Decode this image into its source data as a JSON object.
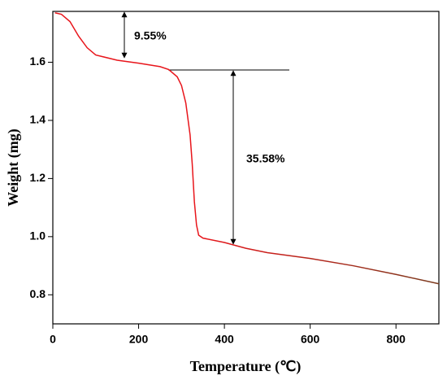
{
  "chart_data": {
    "type": "line",
    "xlabel": "Temperature (℃)",
    "ylabel": "Weight (mg)",
    "x": [
      5,
      20,
      40,
      60,
      80,
      100,
      150,
      200,
      250,
      270,
      290,
      300,
      310,
      320,
      325,
      330,
      335,
      340,
      350,
      400,
      450,
      500,
      600,
      700,
      800,
      900
    ],
    "series": [
      {
        "colors": [
          "#e8151b",
          "#7b3b1e"
        ],
        "values": [
          1.77,
          1.765,
          1.74,
          1.69,
          1.65,
          1.625,
          1.607,
          1.597,
          1.585,
          1.575,
          1.55,
          1.52,
          1.46,
          1.35,
          1.25,
          1.12,
          1.04,
          1.005,
          0.995,
          0.98,
          0.96,
          0.945,
          0.925,
          0.9,
          0.87,
          0.838
        ]
      }
    ],
    "xlim": [
      0,
      900
    ],
    "ylim": [
      0.7,
      1.775
    ],
    "xticks": [
      0,
      200,
      400,
      600,
      800
    ],
    "yticks": [
      0.8,
      {
        "value": 1,
        "label": "1.0"
      },
      1.2,
      1.4,
      1.6
    ],
    "annotations": [
      "9.55%",
      "35.58%"
    ]
  }
}
